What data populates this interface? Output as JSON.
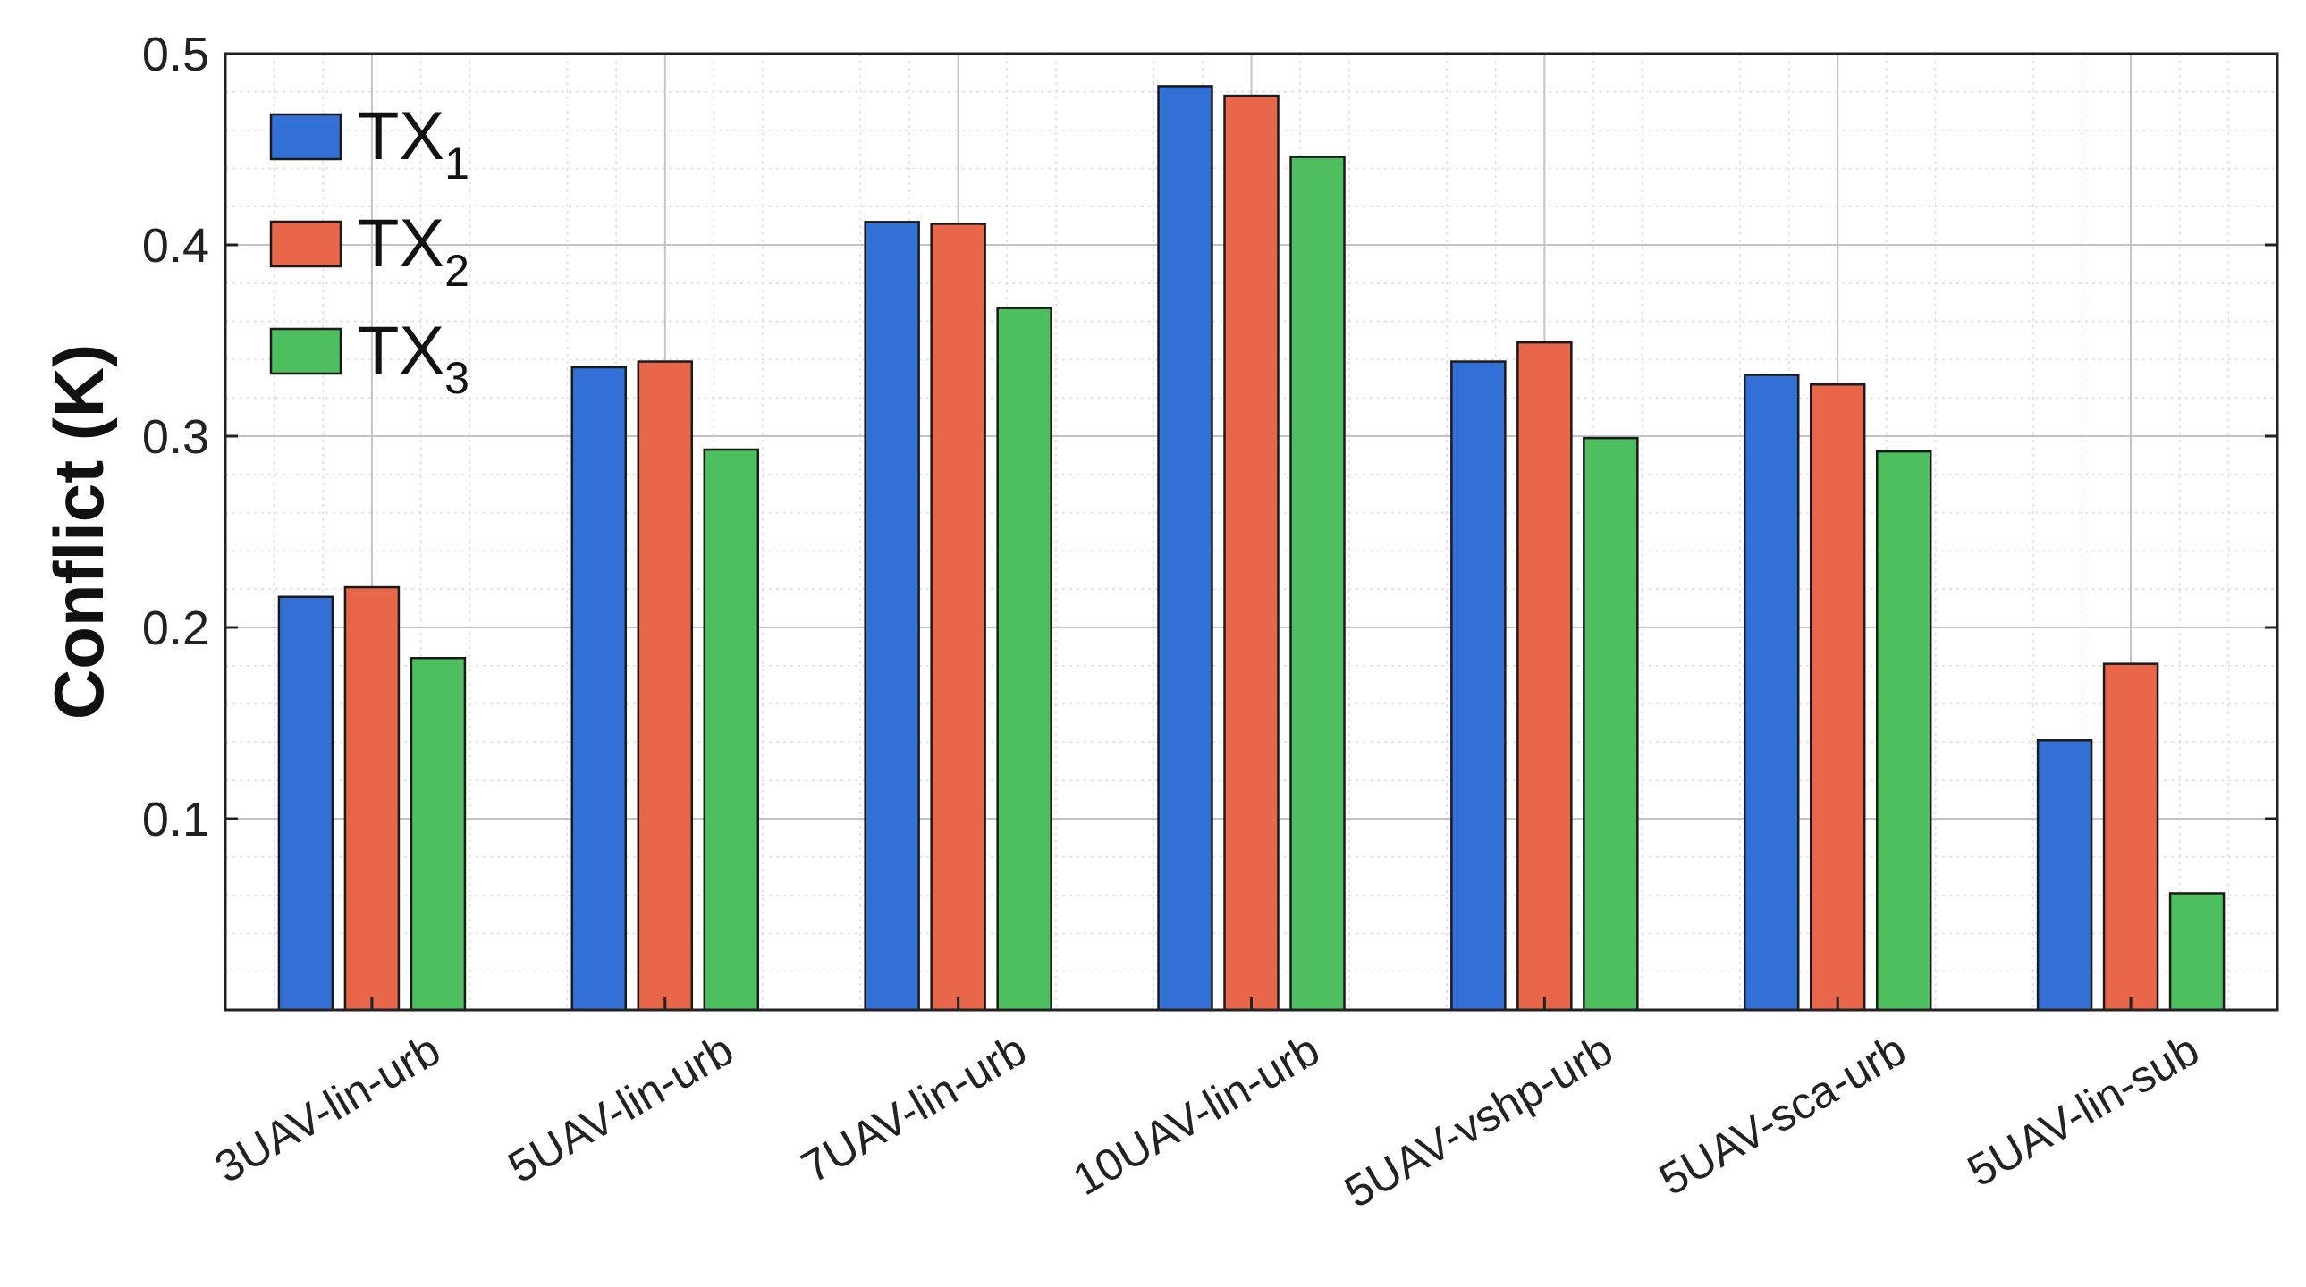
{
  "chart_data": {
    "type": "bar",
    "categories": [
      "3UAV-lin-urb",
      "5UAV-lin-urb",
      "7UAV-lin-urb",
      "10UAV-lin-urb",
      "5UAV-vshp-urb",
      "5UAV-sca-urb",
      "5UAV-lin-sub"
    ],
    "series": [
      {
        "name": "TX",
        "subscript": "1",
        "color": "#3370d6",
        "values": [
          0.216,
          0.336,
          0.412,
          0.483,
          0.339,
          0.332,
          0.141
        ]
      },
      {
        "name": "TX",
        "subscript": "2",
        "color": "#e8664a",
        "values": [
          0.221,
          0.339,
          0.411,
          0.478,
          0.349,
          0.327,
          0.181
        ]
      },
      {
        "name": "TX",
        "subscript": "3",
        "color": "#4dbf5f",
        "values": [
          0.184,
          0.293,
          0.367,
          0.446,
          0.299,
          0.292,
          0.061
        ]
      }
    ],
    "title": "",
    "xlabel": "",
    "ylabel": "Conflict (K)",
    "ylim": [
      0,
      0.5
    ],
    "yticks": [
      0.1,
      0.2,
      0.3,
      0.4,
      0.5
    ],
    "ytick_labels": [
      "0.1",
      "0.2",
      "0.3",
      "0.4",
      "0.5"
    ],
    "grid": true,
    "minor_grid": true,
    "legend_position": "top-left",
    "xtick_rotation": -30
  }
}
